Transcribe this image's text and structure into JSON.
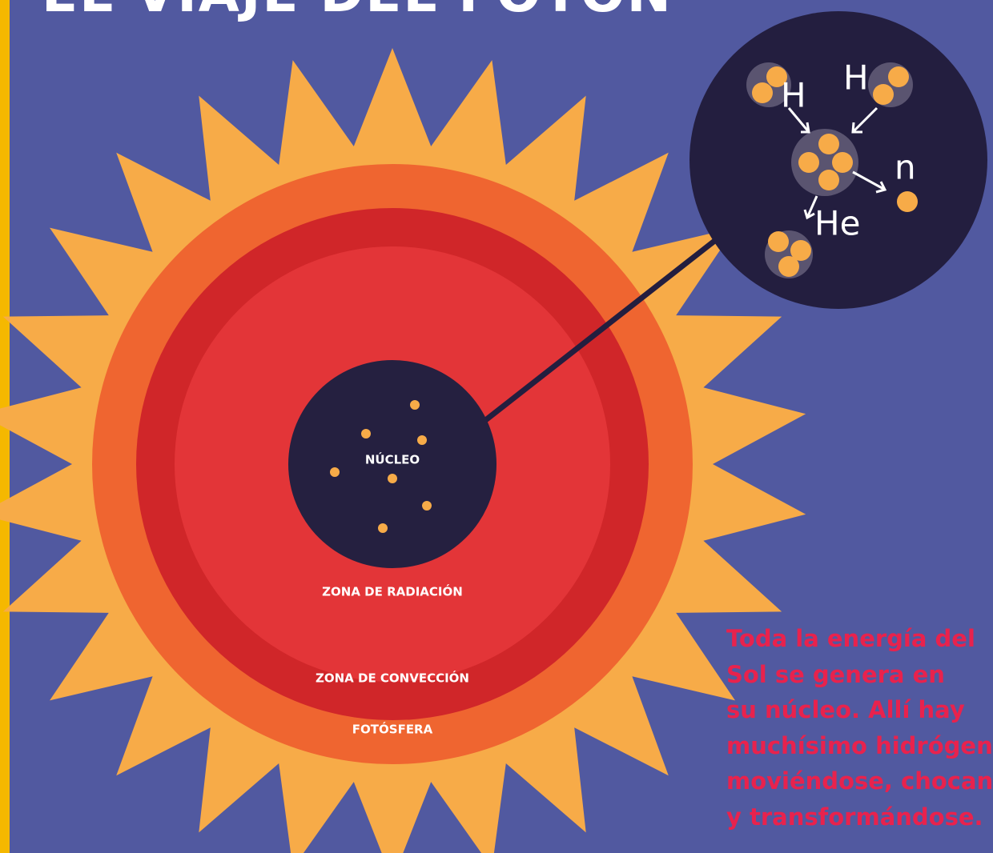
{
  "header": {
    "title": "EL VIAJE DEL FOTÓN"
  },
  "layers": {
    "nucleus": "NÚCLEO",
    "radiation": "ZONA DE RADIACIÓN",
    "convection": "ZONA DE CONVECCIÓN",
    "photosphere": "FOTÓSFERA"
  },
  "inset": {
    "h1": "H",
    "h2": "H",
    "neutron": "n",
    "helium": "He"
  },
  "description": {
    "lines": [
      "Toda la energía del",
      "Sol se genera en",
      "su núcleo. Allí hay",
      "muchísimo hidrógeno",
      "moviéndose, chocando",
      "y transformándose."
    ]
  }
}
